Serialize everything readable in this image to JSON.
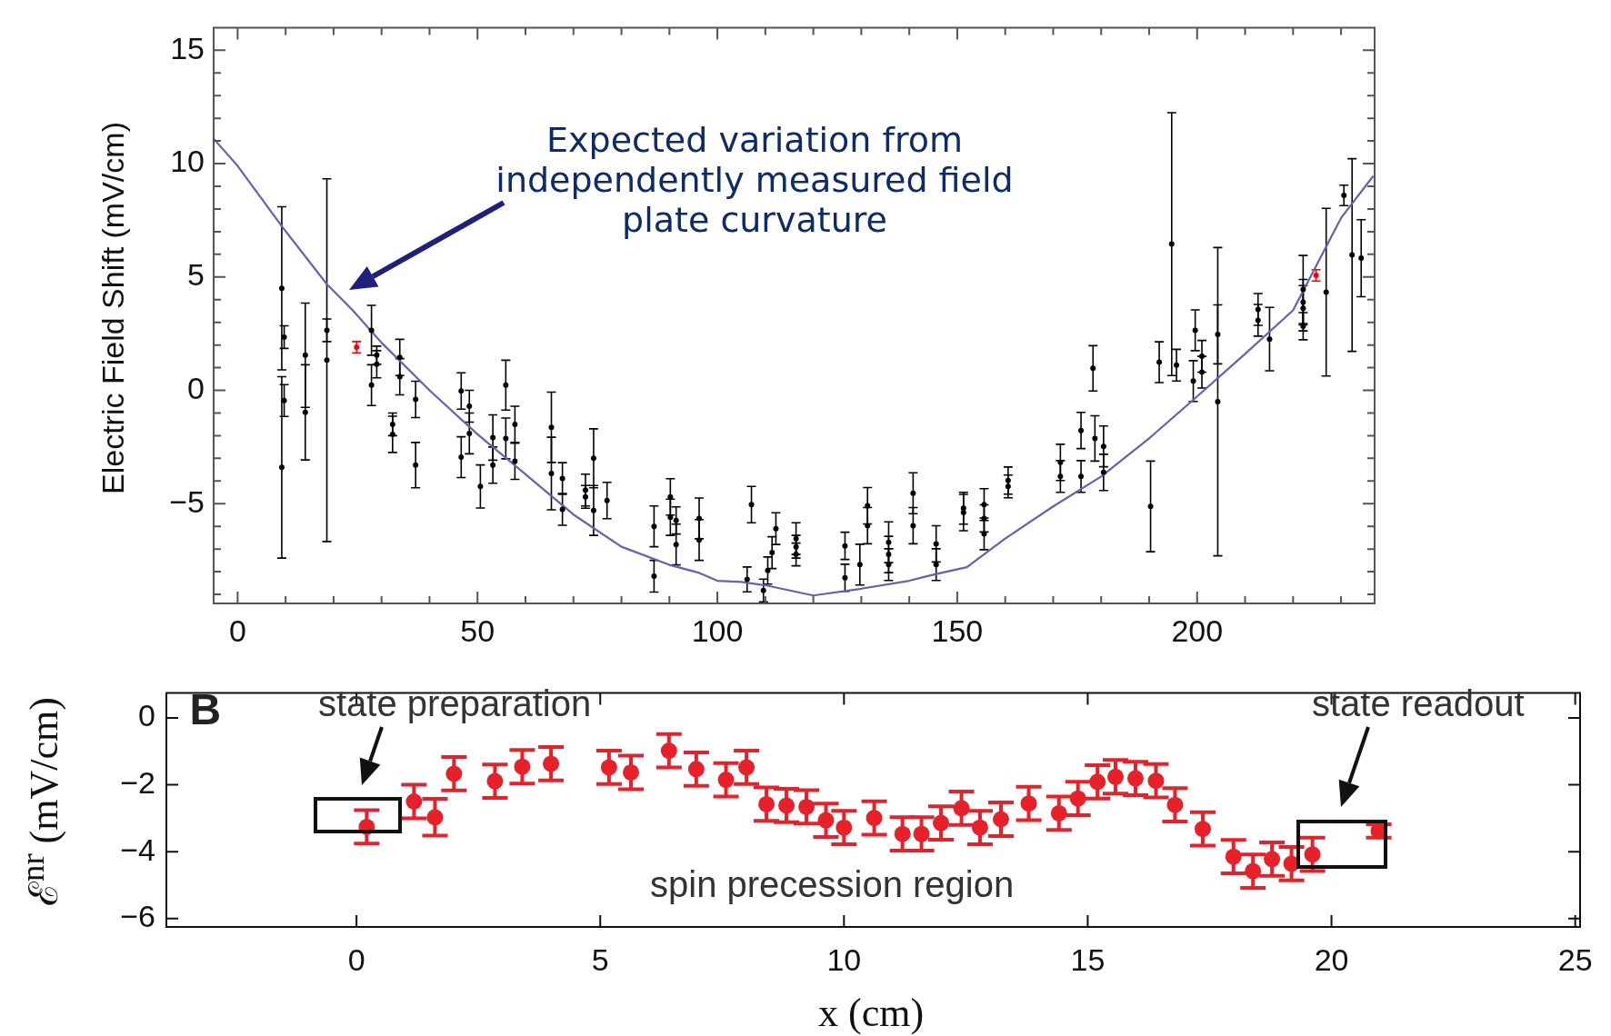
{
  "chart_data": [
    {
      "type": "scatter",
      "ylabel": "Electric Field Shift (mV/cm)",
      "xlim": [
        -5,
        237
      ],
      "ylim": [
        -9.4,
        16
      ],
      "marker": "circle",
      "grid": false,
      "legend": false,
      "xticks": [
        0,
        {
          "value": 10,
          "label": null
        },
        {
          "value": 20,
          "label": null
        },
        {
          "value": 30,
          "label": null
        },
        {
          "value": 40,
          "label": null
        },
        50,
        {
          "value": 60,
          "label": null
        },
        {
          "value": 70,
          "label": null
        },
        {
          "value": 80,
          "label": null
        },
        {
          "value": 90,
          "label": null
        },
        100,
        {
          "value": 110,
          "label": null
        },
        {
          "value": 120,
          "label": null
        },
        {
          "value": 130,
          "label": null
        },
        {
          "value": 140,
          "label": null
        },
        150,
        {
          "value": 160,
          "label": null
        },
        {
          "value": 170,
          "label": null
        },
        {
          "value": 180,
          "label": null
        },
        {
          "value": 190,
          "label": null
        },
        200,
        {
          "value": 210,
          "label": null
        },
        {
          "value": 220,
          "label": null
        },
        {
          "value": 230,
          "label": null
        }
      ],
      "yticks": [
        {
          "value": -9,
          "label": null
        },
        {
          "value": -8,
          "label": null
        },
        {
          "value": -7,
          "label": null
        },
        {
          "value": -6,
          "label": null
        },
        {
          "value": -5,
          "label": "−5"
        },
        {
          "value": -4,
          "label": null
        },
        {
          "value": -3,
          "label": null
        },
        {
          "value": -2,
          "label": null
        },
        {
          "value": -1,
          "label": null
        },
        0,
        {
          "value": 1,
          "label": null
        },
        {
          "value": 2,
          "label": null
        },
        {
          "value": 3,
          "label": null
        },
        {
          "value": 4,
          "label": null
        },
        5,
        {
          "value": 6,
          "label": null
        },
        {
          "value": 7,
          "label": null
        },
        {
          "value": 8,
          "label": null
        },
        {
          "value": 9,
          "label": null
        },
        10,
        {
          "value": 11,
          "label": null
        },
        {
          "value": 12,
          "label": null
        },
        {
          "value": 13,
          "label": null
        },
        {
          "value": 14,
          "label": null
        },
        15
      ],
      "series": [
        {
          "type": "scatter",
          "color": "#000000",
          "x": [
            9.2,
            9.7,
            9.7,
            9.2,
            14.1,
            14.1,
            18.6,
            18.6,
            27.9,
            27.9,
            29.0,
            29.0,
            32.3,
            32.3,
            33.8,
            33.8,
            37.1,
            37.1,
            46.6,
            46.6,
            48.3,
            48.3,
            50.6,
            53.2,
            53.2,
            55.9,
            55.9,
            57.8,
            57.8,
            65.4,
            65.4,
            67.7,
            67.7,
            72.5,
            72.5,
            74.2,
            74.2,
            77.0,
            86.8,
            86.8,
            90.2,
            90.2,
            91.4,
            91.4,
            96.2,
            96.2,
            106.2,
            107.1,
            109.6,
            110.5,
            111.4,
            112.2,
            116.4,
            116.4,
            116.4,
            126.6,
            126.6,
            129.7,
            131.3,
            131.3,
            135.7,
            135.7,
            135.7,
            140.8,
            140.8,
            145.6,
            145.6,
            151.3,
            151.3,
            155.6,
            155.6,
            155.6,
            160.6,
            160.6,
            171.5,
            171.5,
            175.8,
            175.8,
            178.3,
            178.7,
            180.5,
            180.5,
            190.3,
            192.1,
            194.7,
            195.7,
            199.2,
            199.6,
            201.0,
            201.0,
            204.3,
            204.3,
            212.7,
            212.7,
            215.1,
            222.1,
            222.1,
            222.1,
            222.1,
            226.9,
            230.6,
            232.3,
            234.2
          ],
          "values": [
            4.5,
            2.35,
            -0.45,
            -3.4,
            1.55,
            -0.97,
            2.65,
            1.33,
            2.65,
            0.23,
            1.55,
            1.15,
            -1.5,
            -1.94,
            1.45,
            0.6,
            -0.4,
            -3.3,
            -0.03,
            -2.95,
            -0.7,
            -1.9,
            -4.24,
            -2.08,
            -3.3,
            0.23,
            -2.12,
            -1.5,
            -3.13,
            -1.63,
            -3.67,
            -3.89,
            -5.25,
            -4.4,
            -4.7,
            -3.0,
            -5.3,
            -4.86,
            -6.0,
            -8.2,
            -4.7,
            -5.6,
            -6.8,
            -5.74,
            -5.65,
            -6.6,
            -8.34,
            -5.04,
            -8.83,
            -7.95,
            -7.16,
            -6.1,
            -6.54,
            -6.9,
            -7.24,
            -6.86,
            -8.27,
            -7.69,
            -5.09,
            -5.97,
            -6.7,
            -7.24,
            -7.69,
            -4.54,
            -5.97,
            -6.77,
            -7.69,
            -5.39,
            -5.2,
            -5.04,
            -5.65,
            -6.33,
            -3.98,
            -4.24,
            -3.18,
            -3.8,
            -1.77,
            -3.8,
            0.97,
            -2.12,
            -2.47,
            -3.62,
            -5.12,
            1.24,
            6.45,
            1.11,
            0.41,
            2.65,
            1.5,
            0.8,
            -0.5,
            2.47,
            3.57,
            3.09,
            2.26,
            4.45,
            3.89,
            3.62,
            2.83,
            4.33,
            8.6,
            5.97,
            5.83
          ],
          "errors": [
            3.6,
            0.5,
            0.7,
            4.0,
            2.3,
            2.1,
            0.5,
            8.0,
            1.1,
            0.9,
            0.4,
            0.6,
            0.5,
            0.8,
            0.8,
            0.8,
            0.8,
            1.0,
            0.8,
            0.9,
            0.7,
            0.9,
            0.95,
            1.0,
            0.8,
            1.1,
            0.9,
            0.8,
            0.8,
            1.55,
            1.6,
            0.7,
            0.7,
            0.7,
            0.5,
            1.3,
            1.1,
            0.8,
            0.9,
            0.7,
            0.8,
            0.8,
            0.9,
            0.6,
            0.9,
            0.9,
            0.55,
            0.8,
            0.5,
            0.6,
            0.7,
            0.7,
            0.7,
            0.5,
            0.5,
            0.6,
            0.6,
            0.9,
            0.8,
            0.8,
            0.9,
            0.8,
            0.7,
            0.9,
            0.8,
            0.8,
            0.7,
            0.8,
            0.7,
            0.7,
            0.6,
            0.7,
            0.6,
            0.5,
            0.8,
            0.7,
            0.8,
            0.7,
            1.0,
            1.0,
            0.9,
            0.8,
            2.0,
            0.9,
            5.8,
            0.7,
            0.9,
            0.9,
            0.7,
            0.7,
            6.8,
            1.3,
            0.7,
            0.7,
            1.4,
            1.5,
            1.0,
            1.0,
            0.6,
            3.7,
            0.45,
            4.25,
            1.7
          ]
        },
        {
          "type": "scatter",
          "color": "#ff0000",
          "x": [
            24.8,
            224.8
          ],
          "values": [
            1.9,
            5.07
          ],
          "errors": [
            0.25,
            0.25
          ]
        },
        {
          "type": "line",
          "marker": "none",
          "color": "#6262b5",
          "x": [
            -5,
            0,
            9.2,
            18.6,
            24,
            30,
            40,
            50,
            60,
            70,
            80,
            90,
            96,
            100,
            105,
            110,
            120,
            130,
            140,
            145,
            152,
            160,
            170,
            180,
            190,
            200,
            209.9,
            220,
            230,
            236.7
          ],
          "values": [
            11.1,
            9.9,
            7.24,
            4.68,
            3.53,
            2.1,
            0,
            -1.94,
            -3.7,
            -5.48,
            -6.9,
            -7.7,
            -8.04,
            -8.4,
            -8.45,
            -8.6,
            -9.05,
            -8.75,
            -8.4,
            -8.13,
            -7.8,
            -6.54,
            -5.12,
            -3.8,
            -2.12,
            -0.27,
            1.59,
            3.53,
            7.6,
            9.45
          ]
        }
      ],
      "annotations": [
        "Expected variation from independently measured field plate curvature"
      ]
    },
    {
      "type": "scatter",
      "xlabel": "x (cm)",
      "ylabel": "ℰ$^{nr}$ (mV/cm)",
      "xlim": [
        -3.9,
        25.1
      ],
      "ylim": [
        -6.25,
        0.75
      ],
      "marker": "circle",
      "grid": false,
      "legend": false,
      "xticks": [
        0,
        5,
        10,
        15,
        20,
        25
      ],
      "yticks": [
        {
          "value": -6,
          "label": "−6"
        },
        {
          "value": -4,
          "label": "−4"
        },
        {
          "value": -2,
          "label": "−2"
        },
        0
      ],
      "series": [
        {
          "type": "scatter",
          "color": "#e8202a",
          "x": [
            0.21,
            1.18,
            1.61,
            2.0,
            2.84,
            3.4,
            3.99,
            5.18,
            5.63,
            6.41,
            6.97,
            7.58,
            8.0,
            8.41,
            8.82,
            9.23,
            9.63,
            10.0,
            10.62,
            11.2,
            11.59,
            11.99,
            12.41,
            12.79,
            13.22,
            13.79,
            14.41,
            14.8,
            15.2,
            15.57,
            15.98,
            16.4,
            16.79,
            17.36,
            17.99,
            18.39,
            18.78,
            19.18,
            19.61,
            20.97
          ],
          "values": [
            -3.26,
            -2.5,
            -2.97,
            -1.67,
            -1.89,
            -1.46,
            -1.37,
            -1.48,
            -1.63,
            -0.98,
            -1.53,
            -1.85,
            -1.48,
            -2.58,
            -2.62,
            -2.66,
            -3.06,
            -3.28,
            -2.99,
            -3.47,
            -3.47,
            -3.14,
            -2.7,
            -3.28,
            -3.03,
            -2.56,
            -2.85,
            -2.41,
            -1.91,
            -1.76,
            -1.81,
            -1.88,
            -2.6,
            -3.32,
            -4.15,
            -4.58,
            -4.22,
            -4.36,
            -4.08,
            -3.38
          ],
          "errors": [
            0.5,
            0.5,
            0.55,
            0.5,
            0.5,
            0.5,
            0.5,
            0.5,
            0.5,
            0.5,
            0.5,
            0.5,
            0.5,
            0.5,
            0.5,
            0.5,
            0.5,
            0.5,
            0.5,
            0.5,
            0.5,
            0.5,
            0.5,
            0.5,
            0.5,
            0.5,
            0.5,
            0.5,
            0.5,
            0.5,
            0.5,
            0.5,
            0.5,
            0.5,
            0.5,
            0.5,
            0.5,
            0.5,
            0.5,
            0.2
          ]
        }
      ],
      "annotations": [
        "B",
        "state preparation",
        "state readout",
        "spin precession region"
      ]
    }
  ]
}
